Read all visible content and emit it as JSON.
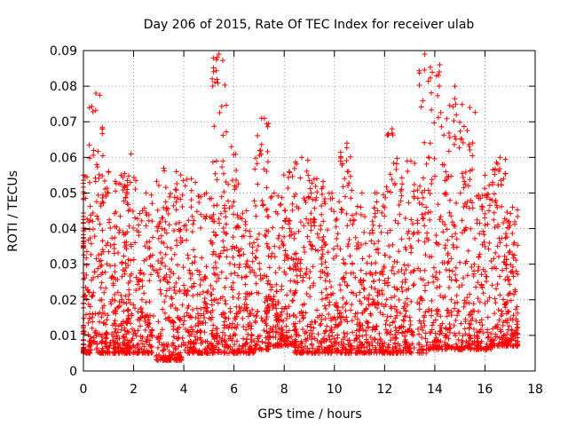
{
  "chart_data": {
    "type": "scatter",
    "title": "Day 206 of 2015, Rate Of TEC Index for receiver ulab",
    "xlabel": "GPS time / hours",
    "ylabel": "ROTI / TECUs",
    "xlim": [
      0,
      18
    ],
    "ylim": [
      0,
      0.09
    ],
    "x_ticks": [
      0,
      2,
      4,
      6,
      8,
      10,
      12,
      14,
      16,
      18
    ],
    "y_ticks": [
      0,
      0.01,
      0.02,
      0.03,
      0.04,
      0.05,
      0.06,
      0.07,
      0.08,
      0.09
    ],
    "x_tick_labels": [
      "0",
      "2",
      "4",
      "6",
      "8",
      "10",
      "12",
      "14",
      "16",
      "18"
    ],
    "y_tick_labels": [
      "0",
      "0.01",
      "0.02",
      "0.03",
      "0.04",
      "0.05",
      "0.06",
      "0.07",
      "0.08",
      "0.09"
    ],
    "grid": true,
    "marker": "plus",
    "color": "#ff0000",
    "data_coverage_hours": [
      0,
      17.3
    ],
    "clusters": [
      {
        "x": 0.0,
        "ymin": 0.005,
        "ymax": 0.055
      },
      {
        "x": 0.5,
        "ymin": 0.005,
        "ymax": 0.078
      },
      {
        "x": 1.0,
        "ymin": 0.005,
        "ymax": 0.056
      },
      {
        "x": 1.5,
        "ymin": 0.005,
        "ymax": 0.055
      },
      {
        "x": 1.9,
        "ymin": 0.005,
        "ymax": 0.061
      },
      {
        "x": 2.5,
        "ymin": 0.005,
        "ymax": 0.05
      },
      {
        "x": 3.2,
        "ymin": 0.003,
        "ymax": 0.057
      },
      {
        "x": 3.7,
        "ymin": 0.003,
        "ymax": 0.056
      },
      {
        "x": 4.3,
        "ymin": 0.005,
        "ymax": 0.054
      },
      {
        "x": 4.9,
        "ymin": 0.005,
        "ymax": 0.05
      },
      {
        "x": 5.4,
        "ymin": 0.005,
        "ymax": 0.089
      },
      {
        "x": 5.9,
        "ymin": 0.005,
        "ymax": 0.063
      },
      {
        "x": 6.5,
        "ymin": 0.005,
        "ymax": 0.045
      },
      {
        "x": 7.1,
        "ymin": 0.006,
        "ymax": 0.071
      },
      {
        "x": 7.6,
        "ymin": 0.007,
        "ymax": 0.05
      },
      {
        "x": 8.2,
        "ymin": 0.007,
        "ymax": 0.056
      },
      {
        "x": 8.7,
        "ymin": 0.005,
        "ymax": 0.06
      },
      {
        "x": 9.3,
        "ymin": 0.005,
        "ymax": 0.054
      },
      {
        "x": 9.9,
        "ymin": 0.005,
        "ymax": 0.05
      },
      {
        "x": 10.5,
        "ymin": 0.005,
        "ymax": 0.064
      },
      {
        "x": 11.1,
        "ymin": 0.005,
        "ymax": 0.05
      },
      {
        "x": 11.7,
        "ymin": 0.005,
        "ymax": 0.05
      },
      {
        "x": 12.3,
        "ymin": 0.005,
        "ymax": 0.068
      },
      {
        "x": 12.9,
        "ymin": 0.005,
        "ymax": 0.059
      },
      {
        "x": 13.6,
        "ymin": 0.005,
        "ymax": 0.089
      },
      {
        "x": 14.2,
        "ymin": 0.006,
        "ymax": 0.086
      },
      {
        "x": 14.8,
        "ymin": 0.006,
        "ymax": 0.08
      },
      {
        "x": 15.4,
        "ymin": 0.006,
        "ymax": 0.074
      },
      {
        "x": 16.0,
        "ymin": 0.006,
        "ymax": 0.055
      },
      {
        "x": 16.6,
        "ymin": 0.007,
        "ymax": 0.06
      },
      {
        "x": 17.1,
        "ymin": 0.007,
        "ymax": 0.046
      }
    ]
  }
}
